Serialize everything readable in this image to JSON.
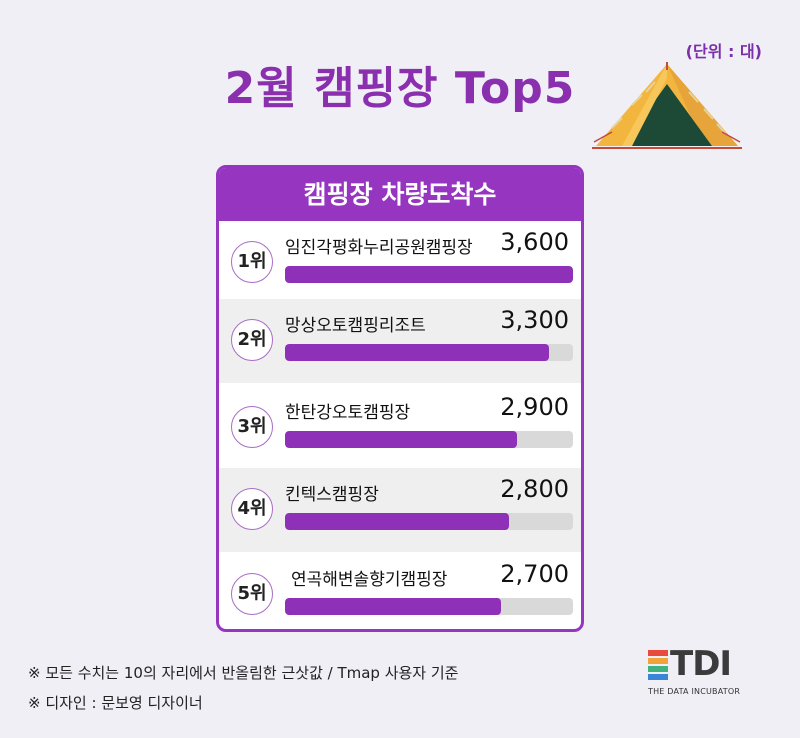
{
  "header": {
    "title": "2월 캠핑장  Top5",
    "unit": "(단위 : 대)"
  },
  "panel": {
    "title": "캠핑장 차량도착수"
  },
  "chart_data": {
    "type": "bar",
    "orientation": "horizontal",
    "title": "캠핑장 차량도착수",
    "xlim": [
      0,
      3600
    ],
    "ranks": [
      "1위",
      "2위",
      "3위",
      "4위",
      "5위"
    ],
    "categories": [
      "임진각평화누리공원캠핑장",
      "망상오토캠핑리조트",
      "한탄강오토캠핑장",
      "킨텍스캠핑장",
      "연곡해변솔향기캠핑장"
    ],
    "values": [
      3600,
      3300,
      2900,
      2800,
      2700
    ],
    "value_labels": [
      "3,600",
      "3,300",
      "2,900",
      "2,800",
      "2,700"
    ]
  },
  "footnotes": {
    "note1": "※ 모든 수치는 10의 자리에서 반올림한 근삿값 / Tmap 사용자 기준",
    "note2": "※ 디자인 : 문보영 디자이너"
  },
  "logo": {
    "text": "TDI",
    "subtitle": "THE DATA INCUBATOR"
  },
  "colors": {
    "accent": "#9535c0",
    "bar": "#8f30b8",
    "track": "#d9d9d9",
    "background": "#f1eff6"
  },
  "icons": {
    "tent": "tent-icon"
  }
}
